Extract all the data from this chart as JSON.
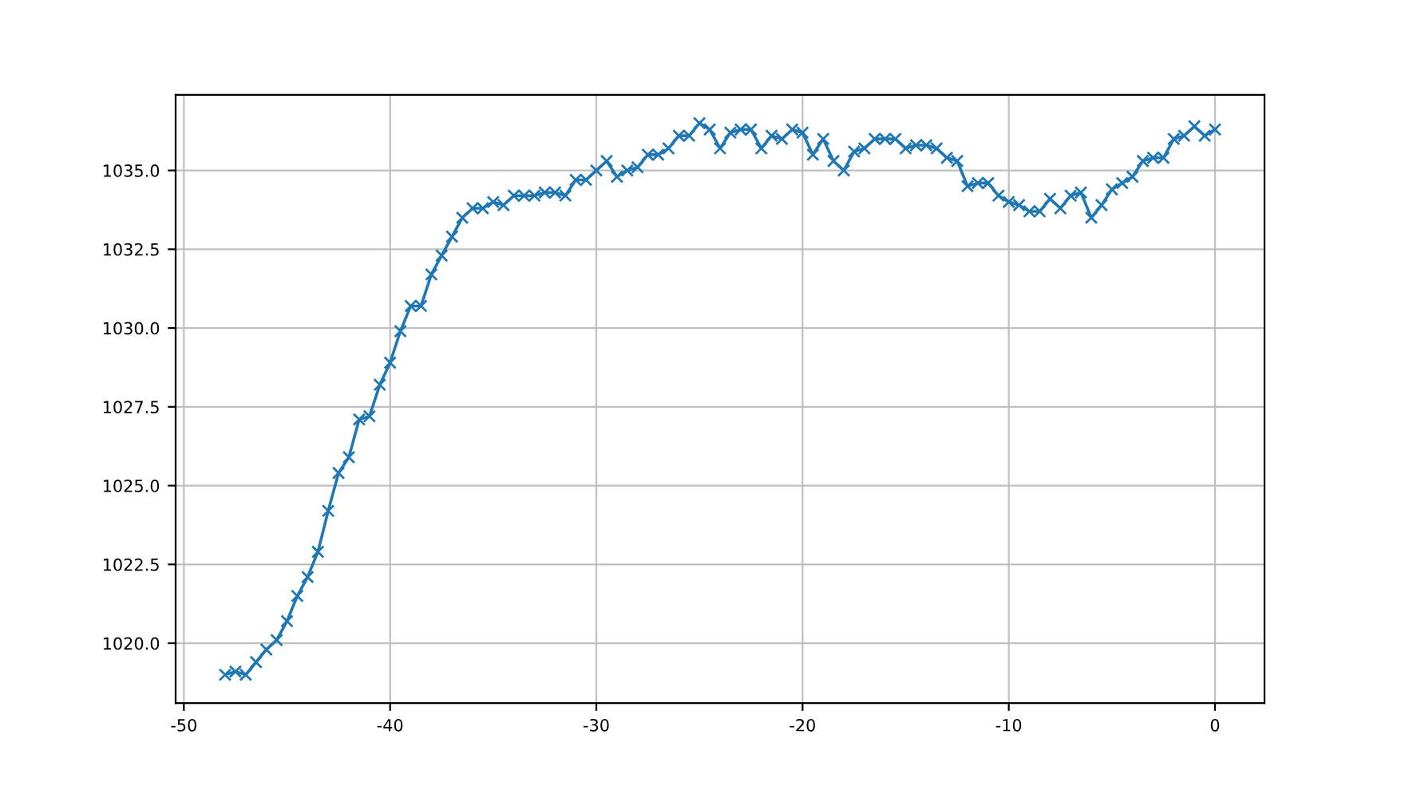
{
  "chart_data": {
    "type": "line",
    "x": [
      -48,
      -47.5,
      -47,
      -46.5,
      -46,
      -45.5,
      -45,
      -44.5,
      -44,
      -43.5,
      -43,
      -42.5,
      -42,
      -41.5,
      -41,
      -40.5,
      -40,
      -39.5,
      -39,
      -38.5,
      -38,
      -37.5,
      -37,
      -36.5,
      -36,
      -35.5,
      -35,
      -34.5,
      -34,
      -33.5,
      -33,
      -32.5,
      -32,
      -31.5,
      -31,
      -30.5,
      -30,
      -29.5,
      -29,
      -28.5,
      -28,
      -27.5,
      -27,
      -26.5,
      -26,
      -25.5,
      -25,
      -24.5,
      -24,
      -23.5,
      -23,
      -22.5,
      -22,
      -21.5,
      -21,
      -20.5,
      -20,
      -19.5,
      -19,
      -18.5,
      -18,
      -17.5,
      -17,
      -16.5,
      -16,
      -15.5,
      -15,
      -14.5,
      -14,
      -13.5,
      -13,
      -12.5,
      -12,
      -11.5,
      -11,
      -10.5,
      -10,
      -9.5,
      -9,
      -8.5,
      -8,
      -7.5,
      -7,
      -6.5,
      -6,
      -5.5,
      -5,
      -4.5,
      -4,
      -3.5,
      -3,
      -2.5,
      -2,
      -1.5,
      -1,
      -0.5,
      0
    ],
    "series": [
      {
        "color": "#1f77b4",
        "values": [
          1019.0,
          1019.1,
          1019.0,
          1019.4,
          1019.8,
          1020.1,
          1020.7,
          1021.5,
          1022.1,
          1022.9,
          1024.2,
          1025.4,
          1025.9,
          1027.1,
          1027.2,
          1028.2,
          1028.9,
          1029.9,
          1030.7,
          1030.7,
          1031.7,
          1032.3,
          1032.9,
          1033.5,
          1033.8,
          1033.8,
          1034.0,
          1033.9,
          1034.2,
          1034.2,
          1034.2,
          1034.3,
          1034.3,
          1034.2,
          1034.7,
          1034.7,
          1035.0,
          1035.3,
          1034.8,
          1035.0,
          1035.1,
          1035.5,
          1035.5,
          1035.7,
          1036.1,
          1036.1,
          1036.5,
          1036.3,
          1035.7,
          1036.2,
          1036.3,
          1036.3,
          1035.7,
          1036.1,
          1036.0,
          1036.3,
          1036.2,
          1035.5,
          1036.0,
          1035.3,
          1035.0,
          1035.6,
          1035.7,
          1036.0,
          1036.0,
          1036.0,
          1035.7,
          1035.8,
          1035.8,
          1035.7,
          1035.4,
          1035.3,
          1034.5,
          1034.6,
          1034.6,
          1034.2,
          1034.0,
          1033.9,
          1033.7,
          1033.7,
          1034.1,
          1033.8,
          1034.2,
          1034.3,
          1033.5,
          1033.9,
          1034.4,
          1034.6,
          1034.8,
          1035.3,
          1035.4,
          1035.4,
          1036.0,
          1036.1,
          1036.4,
          1036.1,
          1036.3
        ]
      }
    ],
    "xlim": [
      -50.4,
      2.4
    ],
    "ylim": [
      1018.1,
      1037.4
    ],
    "xticks": [
      -50,
      -40,
      -30,
      -20,
      -10,
      0
    ],
    "yticks": [
      {
        "value": 1020,
        "label": "1020.0"
      },
      {
        "value": 1022.5,
        "label": "1022.5"
      },
      {
        "value": 1025,
        "label": "1025.0"
      },
      {
        "value": 1027.5,
        "label": "1027.5"
      },
      {
        "value": 1030,
        "label": "1030.0"
      },
      {
        "value": 1032.5,
        "label": "1032.5"
      },
      {
        "value": 1035,
        "label": "1035.0"
      }
    ],
    "grid": true,
    "marker": "cross",
    "line_style": "solid"
  }
}
